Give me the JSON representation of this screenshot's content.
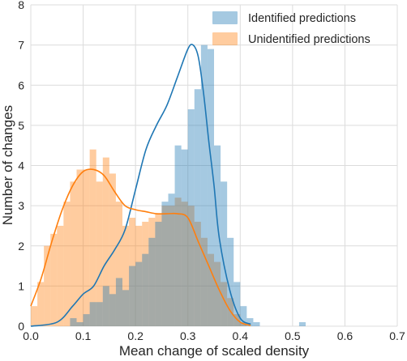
{
  "chart_data": {
    "type": "histogram",
    "xlabel": "Mean change of scaled density",
    "ylabel": "Number of changes",
    "xlim": [
      0.0,
      0.7
    ],
    "ylim": [
      0,
      8
    ],
    "xticks": [
      0.0,
      0.1,
      0.2,
      0.3,
      0.4,
      0.5,
      0.6,
      0.7
    ],
    "yticks": [
      0,
      1,
      2,
      3,
      4,
      5,
      6,
      7,
      8
    ],
    "grid": true,
    "legend_position": "top-right",
    "bin_width": 0.0125,
    "series": [
      {
        "name": "Identified predictions",
        "color": "#1f77b4",
        "bin_start": 0.0,
        "counts": [
          0,
          0,
          0,
          0,
          0,
          0,
          0.2,
          0.1,
          0.3,
          0.6,
          0.6,
          1.0,
          0.8,
          1.2,
          0.9,
          1.5,
          1.6,
          1.8,
          2.2,
          2.6,
          3.1,
          3.3,
          4.5,
          4.4,
          5.4,
          5.9,
          7.0,
          6.9,
          4.5,
          3.6,
          2.2,
          1.1,
          0.5,
          0.2,
          0.1,
          0,
          0,
          0,
          0,
          0,
          0,
          0.1,
          0
        ],
        "kde": {
          "x": [
            0.0,
            0.05,
            0.08,
            0.1,
            0.12,
            0.14,
            0.16,
            0.18,
            0.2,
            0.22,
            0.24,
            0.26,
            0.28,
            0.3,
            0.31,
            0.32,
            0.33,
            0.34,
            0.35,
            0.36,
            0.38,
            0.4,
            0.42
          ],
          "y": [
            0,
            0.1,
            0.5,
            0.8,
            1.0,
            1.5,
            1.9,
            2.4,
            3.4,
            4.4,
            5.0,
            5.5,
            6.2,
            6.9,
            7.0,
            6.7,
            5.8,
            4.6,
            3.5,
            2.2,
            0.9,
            0.2,
            0.05
          ]
        }
      },
      {
        "name": "Unidentified predictions",
        "color": "#ff7f0e",
        "bin_start": -0.0125,
        "counts": [
          0.1,
          0.5,
          1.1,
          2.0,
          2.3,
          2.5,
          3.1,
          3.6,
          3.9,
          3.9,
          4.4,
          3.6,
          4.2,
          3.8,
          3.1,
          2.5,
          2.7,
          2.5,
          2.6,
          2.7,
          2.8,
          3.0,
          3.0,
          3.2,
          3.1,
          3.0,
          2.6,
          2.2,
          1.8,
          1.6,
          1.1,
          0.7,
          0.3,
          0.1,
          0,
          0
        ],
        "kde": {
          "x": [
            0.0,
            0.02,
            0.04,
            0.06,
            0.08,
            0.1,
            0.12,
            0.14,
            0.16,
            0.18,
            0.2,
            0.22,
            0.24,
            0.26,
            0.28,
            0.3,
            0.32,
            0.34,
            0.36,
            0.38,
            0.4,
            0.42
          ],
          "y": [
            0.5,
            1.2,
            2.1,
            2.9,
            3.5,
            3.85,
            3.9,
            3.75,
            3.35,
            3.0,
            2.9,
            2.85,
            2.8,
            2.8,
            2.8,
            2.7,
            2.1,
            1.5,
            0.9,
            0.4,
            0.1,
            0.02
          ]
        }
      }
    ]
  }
}
